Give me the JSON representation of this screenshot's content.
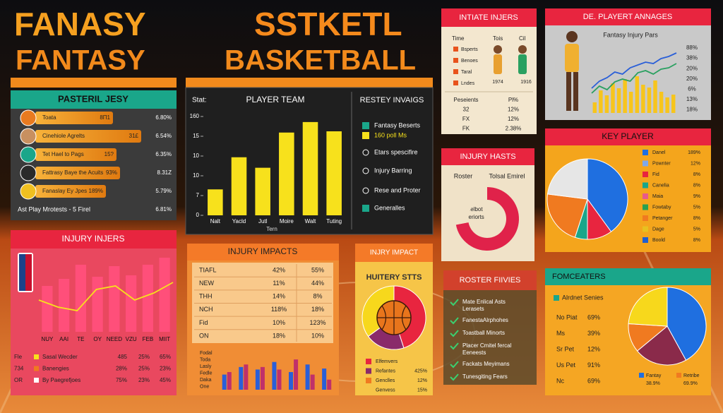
{
  "header": {
    "a1": "FANASY",
    "a2": "FANTASY",
    "b1": "SSTKETL",
    "b2": "BASKETBALL"
  },
  "roster": {
    "title": "PASTERIL JESY",
    "rows": [
      [
        "Toata",
        "8Π1",
        "6.80%"
      ],
      [
        "Cinehiole Agrelts",
        "31£",
        "6.54%"
      ],
      [
        "Tet Hael to Pags",
        "15?",
        "6.35%"
      ],
      [
        "Fattrasy Baye the Acuits",
        "93%",
        "8.31Z"
      ],
      [
        "Fanaslay Ey Jpes",
        "189%",
        "5.79%"
      ]
    ],
    "footer": [
      "Ast Play Mrotests - 5 Firel",
      "6.81%"
    ]
  },
  "stats_legend": {
    "title": "RESTEY INVAIGS",
    "items": [
      "Fantasy Beserts",
      "160 poll Ms",
      "Etars spescifire",
      "Injury Barring",
      "Rese and Proter",
      "Generalles"
    ]
  },
  "initiate": {
    "title": "INTIATE INJERS",
    "cols": [
      "Time",
      "Tois",
      "Cil"
    ],
    "rows": [
      "Bsperts",
      "Benoes",
      "Taral",
      "Lndes"
    ],
    "years": [
      "1974",
      "1916"
    ],
    "table": [
      [
        "Peseients",
        "Pl%"
      ],
      [
        "32",
        "12%"
      ],
      [
        "FX",
        "12%"
      ],
      [
        "FK",
        "2.38%"
      ]
    ]
  },
  "player_avg": {
    "title": "DE. PLAYERT ANNAGES",
    "side": [
      "88%",
      "38%",
      "20%",
      "20%",
      "6%",
      "13%",
      "18%"
    ]
  },
  "hasts": {
    "title": "INJURY HASTS",
    "left": "Roster",
    "right": "Tolsal Emirel",
    "center": [
      "Nelbot",
      "Periorts"
    ]
  },
  "key_player": {
    "title": "KEY PLAYER",
    "legend": [
      [
        "Danel",
        "189%"
      ],
      [
        "Pownter",
        "12%"
      ],
      [
        "Fid",
        "8%"
      ],
      [
        "Canelia",
        "8%"
      ],
      [
        "Maia",
        "9%"
      ],
      [
        "Fowtaby",
        "5%"
      ],
      [
        "Petanger",
        "8%"
      ],
      [
        "Dage",
        "5%"
      ],
      [
        "Boold",
        "8%"
      ]
    ],
    "colors": [
      "#1f6fe0",
      "#7fa8e8",
      "#e8253f",
      "#1aa68a",
      "#e85a8a",
      "#28a050",
      "#f07a20",
      "#e8c020",
      "#1f5fd0"
    ]
  },
  "injury_injers": {
    "title": "INJURY INJERS",
    "rows": [
      [
        "Fle",
        "Sasal Wecder",
        "485",
        "25%",
        "65%"
      ],
      [
        "734",
        "Banengies",
        "28%",
        "25%",
        "23%"
      ],
      [
        "OR",
        "By Paegrefjoes",
        "75%",
        "23%",
        "45%"
      ]
    ]
  },
  "impacts": {
    "title": "INJURY IMPACTS",
    "rows": [
      [
        "TIAFL",
        "42%",
        "55%"
      ],
      [
        "NEW",
        "11%",
        "44%"
      ],
      [
        "THH",
        "14%",
        "8%"
      ],
      [
        "NCH",
        "118%",
        "18%"
      ],
      [
        "Fid",
        "10%",
        "123%"
      ],
      [
        "ON",
        "18%",
        "10%"
      ]
    ],
    "ylabels": [
      "Fodal",
      "Toda",
      "Lasly",
      "Fedle",
      "Daka",
      "One"
    ]
  },
  "hutery": {
    "tab": "INJRY IMPACT",
    "title": "HUITERY STTS",
    "legend": [
      [
        "Elfemvers"
      ],
      [
        "Refantes",
        "425%"
      ],
      [
        "Genclles",
        "12%"
      ],
      [
        "Genvess",
        "15%"
      ]
    ],
    "colors": [
      "#e8253f",
      "#8a2a6a",
      "#f07a20",
      "#f6c548"
    ]
  },
  "roster_fives": {
    "title": "ROSTER FIIVIES",
    "items": [
      [
        "Mate Enlical Asts",
        "Lerasets"
      ],
      [
        "FanestaAlrphohes"
      ],
      [
        "Toastball Minorts"
      ],
      [
        "Placer Cmitel fercal",
        "Eeneests"
      ],
      [
        "Fackats Meyimans"
      ],
      [
        "Tunesgiting Fears"
      ]
    ]
  },
  "forecasters": {
    "title": "FOMCEATERS",
    "subtitle": "Alrdnet Senies",
    "rows": [
      [
        "No Piat",
        "69%"
      ],
      [
        "Ms",
        "39%"
      ],
      [
        "Sr Pet",
        "12%"
      ],
      [
        "Us Pet",
        "91%"
      ],
      [
        "Nc",
        "69%"
      ]
    ],
    "legend": [
      [
        "Fantay",
        "38.9%"
      ],
      [
        "Retribe",
        "69.9%"
      ]
    ],
    "colors": [
      "#1f6fe0",
      "#f07a20"
    ]
  },
  "chart_data": [
    {
      "type": "bar",
      "title": "PLAYER TEAM",
      "y_label": "Stat:",
      "x_label": "Tern",
      "categories": [
        "Nalt",
        "Yacld",
        "Jutl",
        "Moire",
        "Walt",
        "Tuting"
      ],
      "values": [
        42,
        94,
        77,
        134,
        151,
        136
      ],
      "color": "#f7e11c",
      "ylim": [
        0,
        160
      ],
      "yticks": [
        0,
        {
          "value": 32,
          "label": "7"
        },
        {
          "value": 64,
          "label": "10"
        },
        {
          "value": 96,
          "label": "10"
        },
        {
          "value": 128,
          "label": "15"
        },
        160
      ]
    },
    {
      "type": "bar_line",
      "categories": [
        "NUY",
        "AAI",
        "TE",
        "OY",
        "NEED",
        "VZU",
        "FEB",
        "MIIT"
      ],
      "values": [
        65,
        75,
        95,
        78,
        93,
        80,
        95,
        105
      ],
      "color": "#ff4f7a",
      "ylim": [
        0,
        110
      ],
      "series": [
        {
          "color": "#f7e11c",
          "values": [
            45,
            35,
            30,
            60,
            65,
            45,
            55,
            70
          ]
        }
      ]
    },
    {
      "type": "bar_line",
      "title": "Fantasy Injury Pars",
      "values": [
        15,
        32,
        25,
        42,
        35,
        48,
        30,
        52,
        40,
        36,
        46,
        30,
        22,
        26
      ],
      "color": "#f7c51c",
      "ylim": [
        0,
        100
      ],
      "series": [
        {
          "color": "#2a5fd8",
          "values": [
            35,
            45,
            50,
            58,
            55,
            64,
            68,
            72,
            70,
            77,
            80,
            85
          ]
        },
        {
          "color": "#2aa060",
          "values": [
            28,
            38,
            33,
            44,
            48,
            45,
            57,
            60,
            55,
            62,
            64,
            70
          ]
        }
      ]
    },
    {
      "type": "pie",
      "values": [
        40,
        10,
        5,
        22,
        23
      ],
      "colors": [
        "#1f6fe0",
        "#e8253f",
        "#1aa68a",
        "#f07a20",
        "#e6e6e6"
      ]
    },
    {
      "type": "pie",
      "values": [
        42,
        22,
        12,
        24
      ],
      "colors": [
        "#1f6fe0",
        "#8a2a4a",
        "#f07a20",
        "#f7d81c"
      ]
    },
    {
      "type": "pie",
      "values": [
        45,
        20,
        35
      ],
      "colors": [
        "#e8253f",
        "#8a2a6a",
        "#f7d81c"
      ]
    },
    {
      "type": "pie",
      "donut": true,
      "values": [
        72,
        28
      ],
      "colors": [
        "#e0224a",
        "#f0e2c8"
      ]
    },
    {
      "type": "grouped_bar",
      "ylim": [
        0,
        70
      ],
      "series": [
        {
          "color": "#2a5fd8",
          "values": [
            30,
            45,
            40,
            55,
            35,
            50,
            42
          ]
        },
        {
          "color": "#c0306a",
          "values": [
            35,
            50,
            45,
            40,
            60,
            30,
            20
          ]
        }
      ]
    }
  ]
}
